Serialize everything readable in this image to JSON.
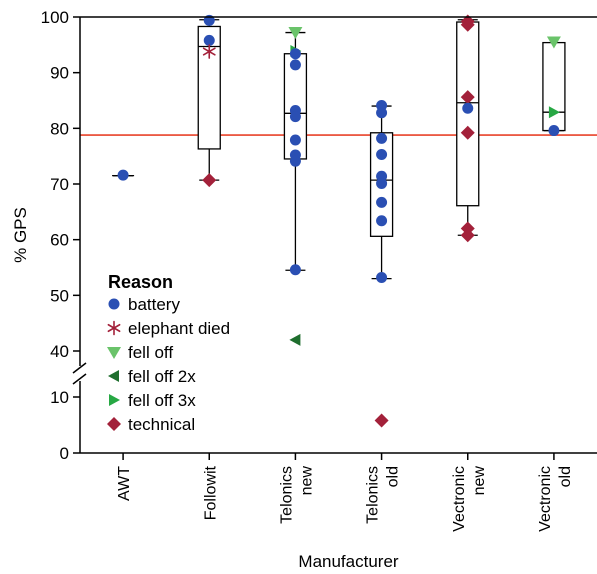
{
  "chart_data": {
    "type": "box",
    "title": "",
    "xlabel": "Manufacturer",
    "ylabel": "% GPS",
    "ylim": [
      0,
      100
    ],
    "axis_break": [
      10,
      40
    ],
    "yticks_lower": [
      0,
      10
    ],
    "yticks_upper": [
      40,
      50,
      60,
      70,
      80,
      90,
      100
    ],
    "reference_line": {
      "y": 78.8,
      "color": "#e8432a"
    },
    "categories": [
      {
        "label_lines": [
          "AWT"
        ]
      },
      {
        "label_lines": [
          "Followit"
        ]
      },
      {
        "label_lines": [
          "Telonics",
          "new"
        ]
      },
      {
        "label_lines": [
          "Telonics",
          "old"
        ]
      },
      {
        "label_lines": [
          "Vectronic",
          "new"
        ]
      },
      {
        "label_lines": [
          "Vectronic",
          "old"
        ]
      }
    ],
    "boxes": [
      {
        "category": 0,
        "min": 71.5,
        "q1": 71.5,
        "median": 71.5,
        "q3": 71.5,
        "max": 71.5
      },
      {
        "category": 1,
        "min": 70.7,
        "q1": 76.3,
        "median": 94.7,
        "q3": 98.3,
        "max": 99.5
      },
      {
        "category": 2,
        "min": 54.5,
        "q1": 74.5,
        "median": 82.7,
        "q3": 93.4,
        "max": 97.2
      },
      {
        "category": 3,
        "min": 53.0,
        "q1": 60.6,
        "median": 70.7,
        "q3": 79.2,
        "max": 84.0
      },
      {
        "category": 4,
        "min": 60.8,
        "q1": 66.1,
        "median": 84.6,
        "q3": 99.1,
        "max": 99.5
      },
      {
        "category": 5,
        "min": 79.6,
        "q1": 79.6,
        "median": 82.9,
        "q3": 95.4,
        "max": 95.4
      }
    ],
    "legend": {
      "title": "Reason",
      "placement": "lower-left",
      "entries": [
        {
          "key": "battery",
          "label": "battery",
          "marker": "circle",
          "color": "#2a4fb3"
        },
        {
          "key": "elephant_died",
          "label": "elephant died",
          "marker": "asterisk",
          "color": "#a3213a"
        },
        {
          "key": "fell_off",
          "label": "fell off",
          "marker": "triangle-down",
          "color": "#6ac36a"
        },
        {
          "key": "fell_off_2x",
          "label": "fell off 2x",
          "marker": "triangle-left",
          "color": "#1f6e2e"
        },
        {
          "key": "fell_off_3x",
          "label": "fell off 3x",
          "marker": "triangle-right",
          "color": "#27a844"
        },
        {
          "key": "technical",
          "label": "technical",
          "marker": "diamond",
          "color": "#a3213a"
        }
      ]
    },
    "points": [
      {
        "category": 0,
        "dx": 0.0,
        "y": 71.6,
        "reason": "battery"
      },
      {
        "category": 1,
        "dx": 0.0,
        "y": 99.4,
        "reason": "battery"
      },
      {
        "category": 1,
        "dx": 0.0,
        "y": 95.8,
        "reason": "battery"
      },
      {
        "category": 1,
        "dx": 0.0,
        "y": 93.8,
        "reason": "elephant_died"
      },
      {
        "category": 1,
        "dx": 0.0,
        "y": 70.7,
        "reason": "technical"
      },
      {
        "category": 2,
        "dx": 0.0,
        "y": 97.3,
        "reason": "fell_off"
      },
      {
        "category": 2,
        "dx": 0.0,
        "y": 93.9,
        "reason": "fell_off_3x"
      },
      {
        "category": 2,
        "dx": 0.0,
        "y": 93.4,
        "reason": "battery"
      },
      {
        "category": 2,
        "dx": 0.0,
        "y": 91.4,
        "reason": "battery"
      },
      {
        "category": 2,
        "dx": 0.0,
        "y": 83.2,
        "reason": "battery"
      },
      {
        "category": 2,
        "dx": 0.0,
        "y": 82.1,
        "reason": "battery"
      },
      {
        "category": 2,
        "dx": 0.0,
        "y": 77.9,
        "reason": "battery"
      },
      {
        "category": 2,
        "dx": 0.0,
        "y": 75.2,
        "reason": "battery"
      },
      {
        "category": 2,
        "dx": 0.0,
        "y": 74.1,
        "reason": "battery"
      },
      {
        "category": 2,
        "dx": 0.0,
        "y": 54.6,
        "reason": "battery"
      },
      {
        "category": 2,
        "dx": 0.0,
        "y": 42.0,
        "reason": "fell_off_2x"
      },
      {
        "category": 3,
        "dx": 0.0,
        "y": 84.1,
        "reason": "battery"
      },
      {
        "category": 3,
        "dx": 0.0,
        "y": 82.8,
        "reason": "battery"
      },
      {
        "category": 3,
        "dx": 0.0,
        "y": 78.2,
        "reason": "battery"
      },
      {
        "category": 3,
        "dx": 0.0,
        "y": 75.3,
        "reason": "battery"
      },
      {
        "category": 3,
        "dx": 0.0,
        "y": 71.4,
        "reason": "battery"
      },
      {
        "category": 3,
        "dx": 0.0,
        "y": 70.1,
        "reason": "battery"
      },
      {
        "category": 3,
        "dx": 0.0,
        "y": 66.7,
        "reason": "battery"
      },
      {
        "category": 3,
        "dx": 0.0,
        "y": 63.4,
        "reason": "battery"
      },
      {
        "category": 3,
        "dx": 0.0,
        "y": 53.2,
        "reason": "battery"
      },
      {
        "category": 3,
        "dx": 0.0,
        "y": 5.8,
        "reason": "technical"
      },
      {
        "category": 4,
        "dx": 0.0,
        "y": 99.2,
        "reason": "technical"
      },
      {
        "category": 4,
        "dx": 0.0,
        "y": 98.6,
        "reason": "technical"
      },
      {
        "category": 4,
        "dx": 0.0,
        "y": 85.6,
        "reason": "technical"
      },
      {
        "category": 4,
        "dx": 0.0,
        "y": 83.6,
        "reason": "battery"
      },
      {
        "category": 4,
        "dx": 0.0,
        "y": 79.2,
        "reason": "technical"
      },
      {
        "category": 4,
        "dx": 0.0,
        "y": 62.0,
        "reason": "technical"
      },
      {
        "category": 4,
        "dx": 0.0,
        "y": 60.8,
        "reason": "technical"
      },
      {
        "category": 5,
        "dx": 0.0,
        "y": 95.6,
        "reason": "fell_off"
      },
      {
        "category": 5,
        "dx": 0.0,
        "y": 82.9,
        "reason": "fell_off_3x"
      },
      {
        "category": 5,
        "dx": 0.0,
        "y": 79.6,
        "reason": "battery"
      }
    ]
  }
}
